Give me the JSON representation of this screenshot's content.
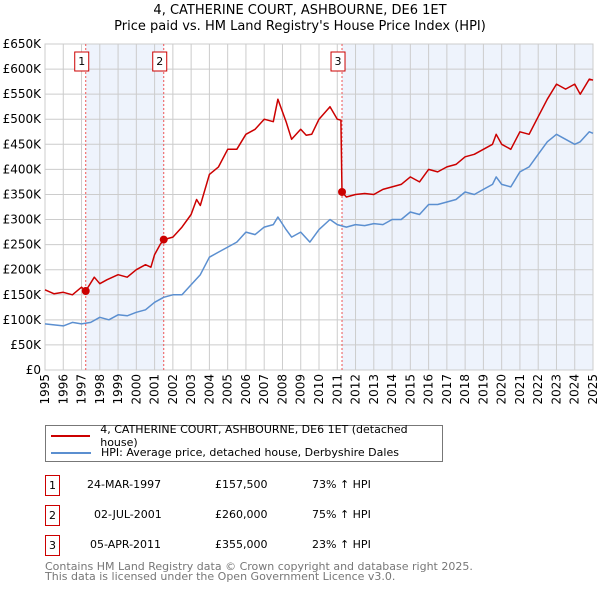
{
  "chart_data": {
    "type": "line",
    "title": "4, CATHERINE COURT, ASHBOURNE, DE6 1ET",
    "subtitle": "Price paid vs. HM Land Registry's House Price Index (HPI)",
    "xlim": [
      1995,
      2025
    ],
    "ylim": [
      0,
      650000
    ],
    "yticks": [
      0,
      50000,
      100000,
      150000,
      200000,
      250000,
      300000,
      350000,
      400000,
      450000,
      500000,
      550000,
      600000,
      650000
    ],
    "ytick_labels": [
      "£0",
      "£50K",
      "£100K",
      "£150K",
      "£200K",
      "£250K",
      "£300K",
      "£350K",
      "£400K",
      "£450K",
      "£500K",
      "£550K",
      "£600K",
      "£650K"
    ],
    "xticks": [
      1995,
      1996,
      1997,
      1998,
      1999,
      2000,
      2001,
      2002,
      2003,
      2004,
      2005,
      2006,
      2007,
      2008,
      2009,
      2010,
      2011,
      2012,
      2013,
      2014,
      2015,
      2016,
      2017,
      2018,
      2019,
      2020,
      2021,
      2022,
      2023,
      2024,
      2025
    ],
    "grid": true,
    "colors": {
      "property": "#cc0000",
      "hpi": "#5b8fd0",
      "shade": "#eef3fc"
    },
    "series": [
      {
        "name": "4, CATHERINE COURT, ASHBOURNE, DE6 1ET (detached house)",
        "key": "property",
        "x": [
          1995,
          1995.5,
          1996,
          1996.5,
          1997,
          1997.23,
          1997.7,
          1998,
          1998.4,
          1999,
          1999.5,
          2000,
          2000.5,
          2000.8,
          2001,
          2001.3,
          2001.5,
          2002,
          2002.5,
          2003,
          2003.3,
          2003.5,
          2004,
          2004.5,
          2005,
          2005.5,
          2006,
          2006.5,
          2007,
          2007.5,
          2007.75,
          2008.2,
          2008.5,
          2009,
          2009.3,
          2009.6,
          2010,
          2010.6,
          2011,
          2011.2,
          2011.26,
          2011.5,
          2012,
          2012.5,
          2013,
          2013.5,
          2014,
          2014.5,
          2015,
          2015.5,
          2016,
          2016.5,
          2017,
          2017.5,
          2018,
          2018.5,
          2019,
          2019.5,
          2019.7,
          2020,
          2020.5,
          2021,
          2021.5,
          2022,
          2022.5,
          2023,
          2023.5,
          2024,
          2024.3,
          2024.8,
          2025
        ],
        "y": [
          160000,
          152000,
          155000,
          150000,
          165000,
          157500,
          185000,
          172000,
          180000,
          190000,
          185000,
          200000,
          210000,
          205000,
          230000,
          250000,
          260000,
          265000,
          285000,
          310000,
          340000,
          328000,
          390000,
          405000,
          440000,
          440000,
          470000,
          480000,
          500000,
          495000,
          540000,
          495000,
          460000,
          480000,
          468000,
          470000,
          500000,
          525000,
          500000,
          498000,
          355000,
          345000,
          350000,
          352000,
          350000,
          360000,
          365000,
          370000,
          385000,
          375000,
          400000,
          395000,
          405000,
          410000,
          425000,
          430000,
          440000,
          450000,
          470000,
          450000,
          440000,
          475000,
          470000,
          505000,
          540000,
          570000,
          560000,
          570000,
          550000,
          580000,
          578000
        ]
      },
      {
        "name": "HPI: Average price, detached house, Derbyshire Dales",
        "key": "hpi",
        "x": [
          1995,
          1995.5,
          1996,
          1996.5,
          1997,
          1997.5,
          1998,
          1998.5,
          1999,
          1999.5,
          2000,
          2000.5,
          2001,
          2001.5,
          2002,
          2002.5,
          2003,
          2003.5,
          2004,
          2004.5,
          2005,
          2005.5,
          2006,
          2006.5,
          2007,
          2007.5,
          2007.75,
          2008.2,
          2008.5,
          2009,
          2009.5,
          2010,
          2010.6,
          2011,
          2011.5,
          2012,
          2012.5,
          2013,
          2013.5,
          2014,
          2014.5,
          2015,
          2015.5,
          2016,
          2016.5,
          2017,
          2017.5,
          2018,
          2018.5,
          2019,
          2019.5,
          2019.7,
          2020,
          2020.5,
          2021,
          2021.5,
          2022,
          2022.5,
          2023,
          2023.5,
          2024,
          2024.3,
          2024.8,
          2025
        ],
        "y": [
          92000,
          90000,
          88000,
          95000,
          92000,
          95000,
          105000,
          100000,
          110000,
          108000,
          115000,
          120000,
          135000,
          145000,
          150000,
          150000,
          170000,
          190000,
          225000,
          235000,
          245000,
          255000,
          275000,
          270000,
          285000,
          290000,
          305000,
          280000,
          265000,
          275000,
          255000,
          280000,
          300000,
          290000,
          285000,
          290000,
          288000,
          292000,
          290000,
          300000,
          300000,
          315000,
          310000,
          330000,
          330000,
          335000,
          340000,
          355000,
          350000,
          360000,
          370000,
          385000,
          370000,
          365000,
          395000,
          405000,
          430000,
          455000,
          470000,
          460000,
          450000,
          455000,
          475000,
          472000
        ]
      }
    ],
    "sales": [
      {
        "label": "1",
        "x": 1997.23,
        "y": 157500
      },
      {
        "label": "2",
        "x": 2001.5,
        "y": 260000
      },
      {
        "label": "3",
        "x": 2011.26,
        "y": 355000
      }
    ],
    "shaded_periods": [
      [
        1997.23,
        2001.5
      ],
      [
        2011.26,
        2025
      ]
    ]
  },
  "legend": {
    "property": "4, CATHERINE COURT, ASHBOURNE, DE6 1ET (detached house)",
    "hpi": "HPI: Average price, detached house, Derbyshire Dales"
  },
  "transactions": [
    {
      "num": "1",
      "date": "24-MAR-1997",
      "price": "£157,500",
      "hpi": "73% ↑ HPI"
    },
    {
      "num": "2",
      "date": "02-JUL-2001",
      "price": "£260,000",
      "hpi": "75% ↑ HPI"
    },
    {
      "num": "3",
      "date": "05-APR-2011",
      "price": "£355,000",
      "hpi": "23% ↑ HPI"
    }
  ],
  "footer": {
    "line1": "Contains HM Land Registry data © Crown copyright and database right 2025.",
    "line2": "This data is licensed under the Open Government Licence v3.0."
  }
}
